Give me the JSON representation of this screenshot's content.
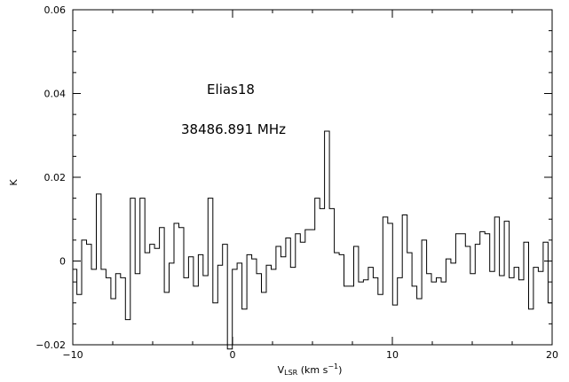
{
  "chart_data": {
    "type": "line",
    "step": true,
    "xlim": [
      -10,
      20
    ],
    "ylim": [
      -0.02,
      0.06
    ],
    "xlabel": {
      "main": "V",
      "sub": "LSR",
      "unit": " (km s",
      "exp": "−1",
      "close": ")"
    },
    "ylabel": "K",
    "annotations": [
      {
        "text": "Elias18"
      },
      {
        "text": "38486.891 MHz"
      }
    ],
    "x_ticks": [
      {
        "value": -10,
        "label": "−10"
      },
      {
        "value": 0,
        "label": "0"
      },
      {
        "value": 10,
        "label": "10"
      },
      {
        "value": 20,
        "label": "20"
      }
    ],
    "y_ticks": [
      {
        "value": -0.02,
        "label": "−0.02"
      },
      {
        "value": 0,
        "label": "0"
      },
      {
        "value": 0.02,
        "label": "0.02"
      },
      {
        "value": 0.04,
        "label": "0.04"
      },
      {
        "value": 0.06,
        "label": "0.06"
      }
    ],
    "x_minor_step": 2.5,
    "y_minor_step": 0.005,
    "grid": false,
    "legend": "none",
    "line_color": "#000000",
    "bin_width": 0.304,
    "x_start": -10.05,
    "values": [
      -0.002,
      -0.008,
      0.005,
      0.004,
      -0.002,
      0.016,
      -0.002,
      -0.004,
      -0.009,
      -0.003,
      -0.004,
      -0.014,
      0.015,
      -0.003,
      0.015,
      0.002,
      0.004,
      0.003,
      0.008,
      -0.0075,
      -0.0005,
      0.009,
      0.008,
      -0.004,
      0.001,
      -0.006,
      0.0015,
      -0.0035,
      0.015,
      -0.01,
      -0.001,
      0.004,
      -0.021,
      -0.002,
      -0.0005,
      -0.0115,
      0.0015,
      0.0005,
      -0.003,
      -0.0075,
      -0.001,
      -0.002,
      0.0035,
      0.001,
      0.0055,
      -0.0015,
      0.0065,
      0.0045,
      0.0075,
      0.0075,
      0.015,
      0.0125,
      0.031,
      0.0125,
      0.002,
      0.0015,
      -0.006,
      -0.006,
      0.0035,
      -0.005,
      -0.0045,
      -0.0015,
      -0.004,
      -0.008,
      0.0105,
      0.009,
      -0.0105,
      -0.004,
      0.011,
      0.002,
      -0.006,
      -0.009,
      0.005,
      -0.003,
      -0.005,
      -0.004,
      -0.005,
      0.0005,
      -0.0005,
      0.0065,
      0.0065,
      0.0035,
      -0.003,
      0.004,
      0.007,
      0.0065,
      -0.0025,
      0.0105,
      -0.0035,
      0.0095,
      -0.004,
      -0.0015,
      -0.0045,
      0.0045,
      -0.0115,
      -0.0015,
      -0.0025,
      0.0045,
      -0.01
    ]
  }
}
